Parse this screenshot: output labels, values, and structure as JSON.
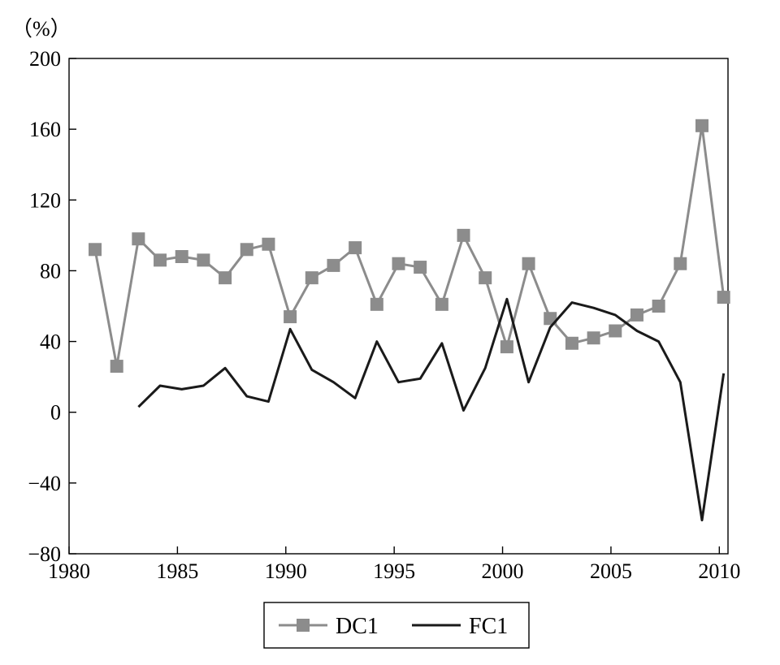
{
  "chart_data": {
    "type": "line",
    "unit_label": "（%）",
    "xlim": [
      1980,
      2010.4
    ],
    "ylim": [
      -80,
      200
    ],
    "x_ticks": [
      1980,
      1985,
      1990,
      1995,
      2000,
      2005,
      2010
    ],
    "y_ticks": [
      -80,
      -40,
      0,
      40,
      80,
      120,
      160,
      200
    ],
    "x_tick_labels": [
      "1980",
      "1985",
      "1990",
      "1995",
      "2000",
      "2005",
      "2010"
    ],
    "y_tick_labels": [
      "−80",
      "−40",
      "0",
      "40",
      "80",
      "120",
      "160",
      "200"
    ],
    "grid": false,
    "legend_position": "bottom-center",
    "series": [
      {
        "name": "DC1",
        "color": "#8c8c8c",
        "marker": "square",
        "x": [
          1981.2,
          1982.2,
          1983.2,
          1984.2,
          1985.2,
          1986.2,
          1987.2,
          1988.2,
          1989.2,
          1990.2,
          1991.2,
          1992.2,
          1993.2,
          1994.2,
          1995.2,
          1996.2,
          1997.2,
          1998.2,
          1999.2,
          2000.2,
          2001.2,
          2002.2,
          2003.2,
          2004.2,
          2005.2,
          2006.2,
          2007.2,
          2008.2,
          2009.2,
          2010.2
        ],
        "y": [
          92,
          26,
          98,
          86,
          88,
          86,
          76,
          92,
          95,
          54,
          76,
          83,
          93,
          61,
          84,
          82,
          61,
          100,
          76,
          37,
          84,
          53,
          39,
          42,
          46,
          55,
          60,
          84,
          162,
          65
        ]
      },
      {
        "name": "FC1",
        "color": "#1a1a1a",
        "marker": "none",
        "x": [
          1983.2,
          1984.2,
          1985.2,
          1986.2,
          1987.2,
          1988.2,
          1989.2,
          1990.2,
          1991.2,
          1992.2,
          1993.2,
          1994.2,
          1995.2,
          1996.2,
          1997.2,
          1998.2,
          1999.2,
          2000.2,
          2001.2,
          2002.2,
          2003.2,
          2004.2,
          2005.2,
          2006.2,
          2007.2,
          2008.2,
          2009.2,
          2010.2
        ],
        "y": [
          3,
          15,
          13,
          15,
          25,
          9,
          6,
          47,
          24,
          17,
          8,
          40,
          17,
          19,
          39,
          1,
          25,
          64,
          17,
          48,
          62,
          59,
          55,
          46,
          40,
          17,
          -61,
          22
        ]
      }
    ]
  }
}
